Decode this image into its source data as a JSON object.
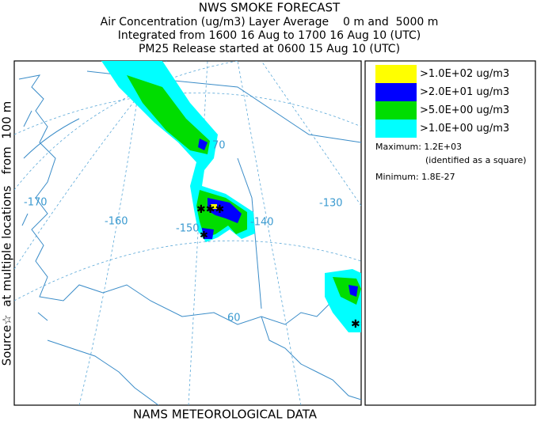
{
  "header": {
    "title": "NWS SMOKE FORECAST",
    "lines": [
      "Air Concentration (ug/m3) Layer Average    0 m and  5000 m",
      "Integrated from 1600 16 Aug to 1700 16 Aug 10 (UTC)",
      "PM25 Release started at 0600 15 Aug 10 (UTC)"
    ]
  },
  "side_label": "Source☆  at multiple locations   from  100 m",
  "footer": "NAMS METEOROLOGICAL DATA",
  "legend": {
    "items": [
      {
        "label": ">1.0E+02 ug/m3",
        "color": "#ffff00"
      },
      {
        "label": ">2.0E+01 ug/m3",
        "color": "#0000ff"
      },
      {
        "label": ">5.0E+00 ug/m3",
        "color": "#00dd00"
      },
      {
        "label": ">1.0E+00 ug/m3",
        "color": "#00ffff"
      }
    ],
    "maximum": "Maximum: 1.2E+03",
    "maximum_note": "(identified as a square)",
    "minimum": "Minimum: 1.8E-27"
  },
  "map_labels": [
    "-170",
    "-160",
    "-150",
    "-140",
    "-130",
    "70",
    "60"
  ]
}
